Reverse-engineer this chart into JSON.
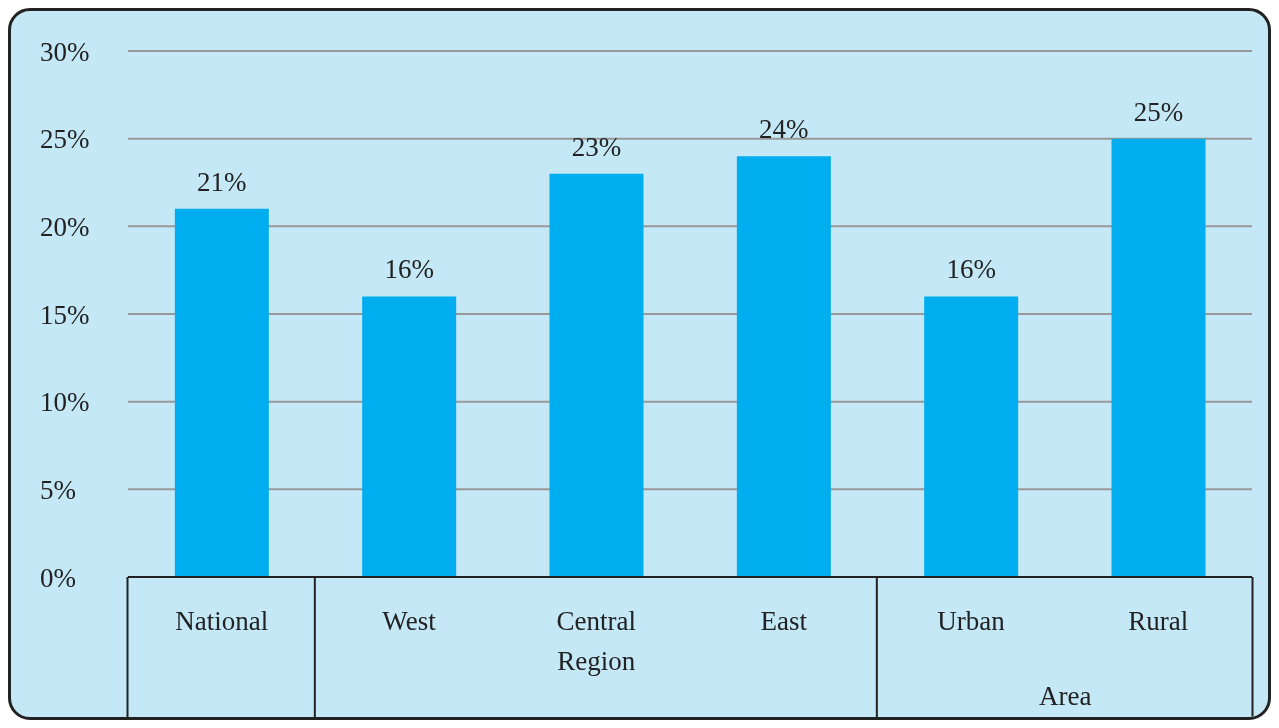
{
  "chart_data": {
    "type": "bar",
    "categories": [
      "National",
      "West",
      "Central",
      "East",
      "Urban",
      "Rural"
    ],
    "values": [
      21,
      16,
      23,
      24,
      16,
      25
    ],
    "value_labels": [
      "21%",
      "16%",
      "23%",
      "24%",
      "16%",
      "25%"
    ],
    "color": "#00aeef",
    "ylim": [
      0,
      30
    ],
    "yticks": [
      {
        "value": 0,
        "label": "0%"
      },
      {
        "value": 5,
        "label": "5%"
      },
      {
        "value": 10,
        "label": "10%"
      },
      {
        "value": 15,
        "label": "15%"
      },
      {
        "value": 20,
        "label": "20%"
      },
      {
        "value": 25,
        "label": "25%"
      },
      {
        "value": 30,
        "label": "30%"
      }
    ],
    "grid": "y",
    "annotations": [
      "Region",
      "Area"
    ]
  }
}
